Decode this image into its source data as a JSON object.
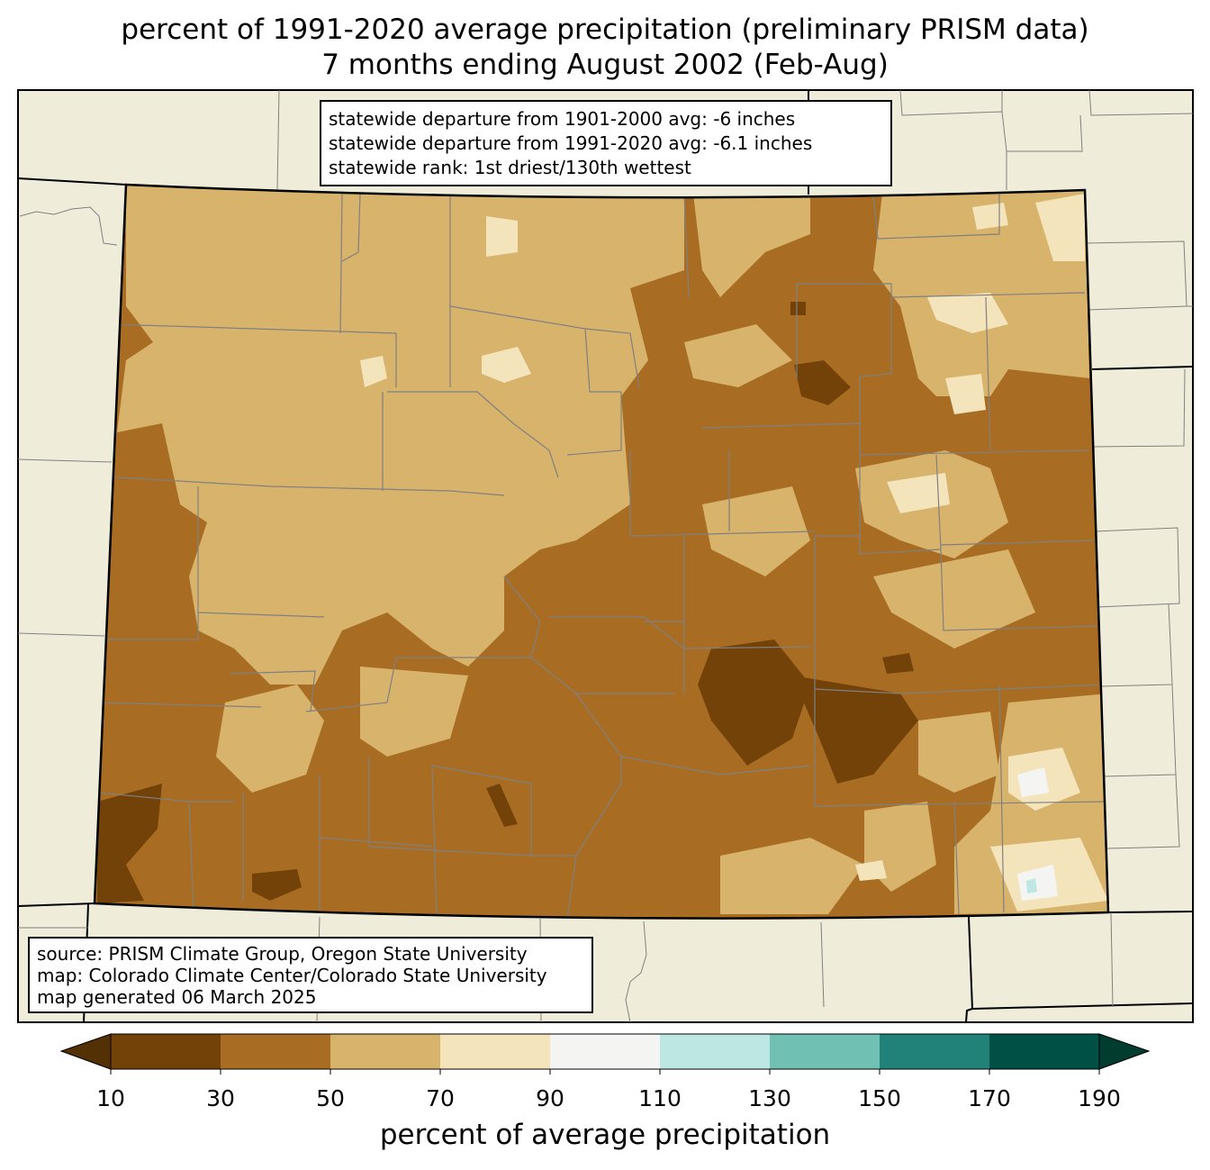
{
  "title": {
    "line1": "percent of 1991-2020 average precipitation (preliminary PRISM data)",
    "line2": "7 months ending August 2002 (Feb-Aug)"
  },
  "stats": {
    "line1": "statewide departure from 1901-2000 avg: -6 inches",
    "line2": "statewide departure from 1991-2020 avg: -6.1 inches",
    "line3": "statewide rank: 1st driest/130th wettest"
  },
  "source": {
    "line1": "source: PRISM Climate Group, Oregon State University",
    "line2": "map: Colorado Climate Center/Colorado State University",
    "line3": "map generated 06 March 2025"
  },
  "colorbar": {
    "label": "percent of average precipitation",
    "ticks": [
      "10",
      "30",
      "50",
      "70",
      "90",
      "110",
      "130",
      "150",
      "170",
      "190"
    ],
    "colors": [
      "#734209",
      "#a86d23",
      "#d8b36c",
      "#f3e4bc",
      "#f4f5f3",
      "#bde7e2",
      "#70c0b3",
      "#218279",
      "#015046"
    ],
    "under_color": "#543005",
    "over_color": "#003c30"
  },
  "map_colors": {
    "land_background": "#efedd9",
    "state_outline": "#000000",
    "county_lines": "#808080"
  }
}
